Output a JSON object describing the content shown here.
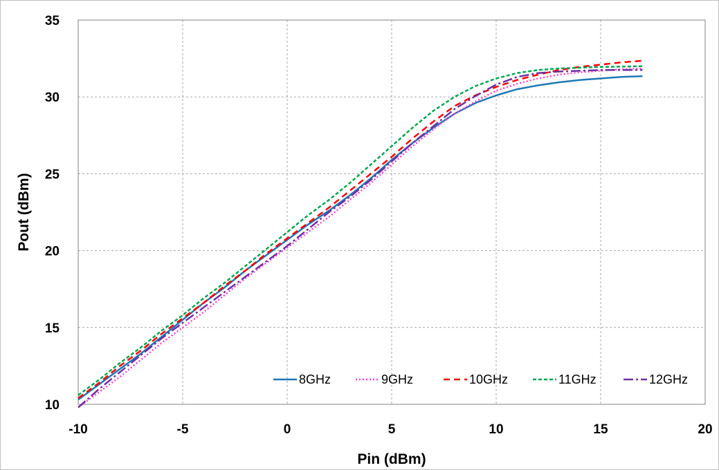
{
  "chart_data": {
    "type": "line",
    "xlabel": "Pin (dBm)",
    "ylabel": "Pout  (dBm)",
    "xlim": [
      -10,
      20
    ],
    "ylim": [
      10,
      35
    ],
    "xticks": [
      -10,
      -5,
      0,
      5,
      10,
      15,
      20
    ],
    "yticks": [
      10,
      15,
      20,
      25,
      30,
      35
    ],
    "grid": true,
    "legend_position": "bottom-right inside plot",
    "x": [
      -10,
      -9,
      -8,
      -7,
      -6,
      -5,
      -4,
      -3,
      -2,
      -1,
      0,
      1,
      2,
      3,
      4,
      5,
      6,
      7,
      8,
      9,
      10,
      11,
      12,
      13,
      14,
      15,
      16,
      17
    ],
    "series": [
      {
        "name": "8GHz",
        "color": "#1f77b4",
        "dash": "",
        "values": [
          10.3,
          11.3,
          12.3,
          13.3,
          14.4,
          15.5,
          16.6,
          17.6,
          18.7,
          19.7,
          20.7,
          21.7,
          22.6,
          23.6,
          24.7,
          25.9,
          27.0,
          28.0,
          28.9,
          29.6,
          30.1,
          30.5,
          30.75,
          30.95,
          31.1,
          31.2,
          31.3,
          31.35
        ]
      },
      {
        "name": "9GHz",
        "color": "#ff3ec8",
        "dash": "2,3",
        "values": [
          9.8,
          10.8,
          11.8,
          12.9,
          14.0,
          15.0,
          16.0,
          17.1,
          18.2,
          19.2,
          20.2,
          21.2,
          22.2,
          23.3,
          24.4,
          25.6,
          26.8,
          27.9,
          28.9,
          29.7,
          30.4,
          30.85,
          31.2,
          31.45,
          31.6,
          31.7,
          31.8,
          31.85
        ]
      },
      {
        "name": "10GHz",
        "color": "#ff0000",
        "dash": "9,6",
        "values": [
          10.4,
          11.4,
          12.5,
          13.5,
          14.6,
          15.6,
          16.6,
          17.7,
          18.7,
          19.8,
          20.8,
          21.8,
          22.8,
          23.9,
          25.0,
          26.1,
          27.3,
          28.4,
          29.4,
          30.1,
          30.65,
          31.1,
          31.45,
          31.75,
          31.95,
          32.1,
          32.25,
          32.35
        ]
      },
      {
        "name": "11GHz",
        "color": "#00a650",
        "dash": "5,3",
        "values": [
          10.6,
          11.6,
          12.7,
          13.7,
          14.8,
          15.8,
          16.9,
          17.9,
          19.0,
          20.1,
          21.2,
          22.3,
          23.3,
          24.4,
          25.6,
          26.8,
          28.0,
          29.1,
          30.0,
          30.7,
          31.2,
          31.55,
          31.75,
          31.85,
          31.9,
          31.95,
          31.97,
          32.0
        ]
      },
      {
        "name": "12GHz",
        "color": "#7030a0",
        "dash": "14,4,3,4",
        "values": [
          9.8,
          11.0,
          12.1,
          13.2,
          14.3,
          15.3,
          16.3,
          17.3,
          18.3,
          19.3,
          20.3,
          21.4,
          22.5,
          23.5,
          24.6,
          25.8,
          27.0,
          28.1,
          29.2,
          30.05,
          30.8,
          31.3,
          31.55,
          31.65,
          31.7,
          31.75,
          31.75,
          31.75
        ]
      }
    ]
  }
}
